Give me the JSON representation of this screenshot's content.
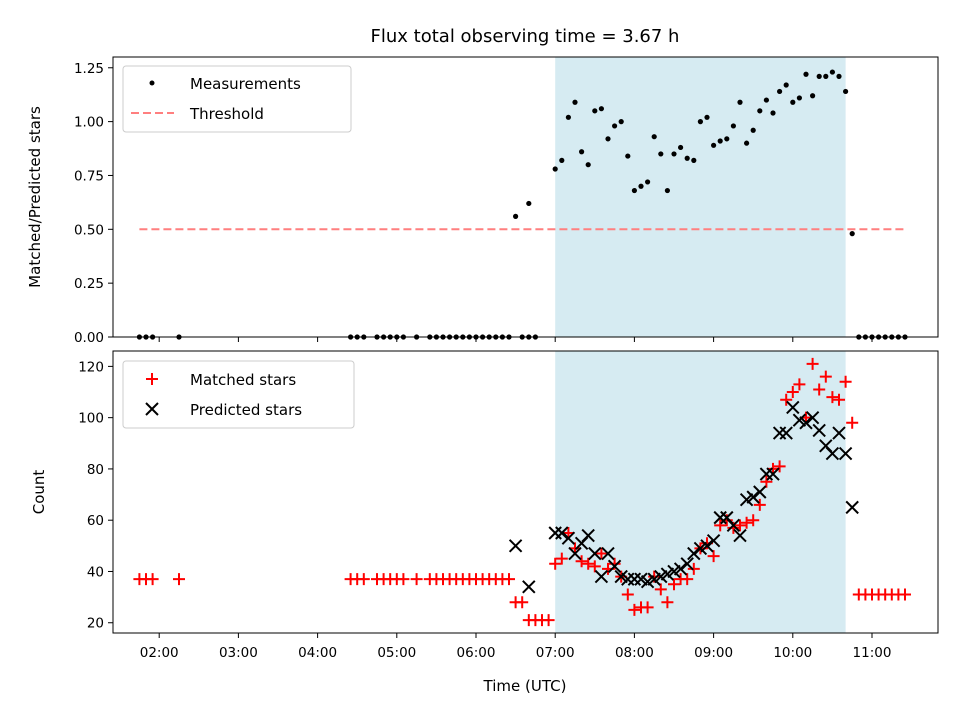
{
  "chart_data": {
    "title": "Flux total observing time = 3.67 h",
    "xlabel": "Time (UTC)",
    "x_ticks": [
      "02:00",
      "03:00",
      "04:00",
      "05:00",
      "06:00",
      "07:00",
      "08:00",
      "09:00",
      "10:00",
      "11:00"
    ],
    "xlim": [
      "01:25",
      "11:50"
    ],
    "highlight_span": [
      "07:00",
      "10:40"
    ],
    "highlight_color": "#add8e6",
    "panels": [
      {
        "type": "scatter",
        "ylabel": "Matched/Predicted stars",
        "ylim": [
          0,
          1.3
        ],
        "y_ticks": [
          "0.00",
          "0.25",
          "0.50",
          "0.75",
          "1.00",
          "1.25"
        ],
        "legend": {
          "position": "top-left",
          "entries": [
            "Measurements",
            "Threshold"
          ]
        },
        "threshold": {
          "label": "Threshold",
          "value": 0.5,
          "x_range": [
            "01:45",
            "11:25"
          ],
          "color": "#ff7f7f"
        },
        "series": [
          {
            "name": "Measurements",
            "marker": "dot",
            "color": "#000000",
            "points": [
              [
                "01:45",
                0
              ],
              [
                "01:50",
                0
              ],
              [
                "01:55",
                0
              ],
              [
                "02:15",
                0
              ],
              [
                "04:25",
                0
              ],
              [
                "04:30",
                0
              ],
              [
                "04:35",
                0
              ],
              [
                "04:45",
                0
              ],
              [
                "04:50",
                0
              ],
              [
                "04:55",
                0
              ],
              [
                "05:00",
                0
              ],
              [
                "05:05",
                0
              ],
              [
                "05:15",
                0
              ],
              [
                "05:25",
                0
              ],
              [
                "05:30",
                0
              ],
              [
                "05:35",
                0
              ],
              [
                "05:40",
                0
              ],
              [
                "05:45",
                0
              ],
              [
                "05:50",
                0
              ],
              [
                "05:55",
                0
              ],
              [
                "06:00",
                0
              ],
              [
                "06:05",
                0
              ],
              [
                "06:10",
                0
              ],
              [
                "06:15",
                0
              ],
              [
                "06:20",
                0
              ],
              [
                "06:25",
                0
              ],
              [
                "06:35",
                0
              ],
              [
                "06:40",
                0
              ],
              [
                "06:45",
                0
              ],
              [
                "06:30",
                0.56
              ],
              [
                "06:40",
                0.62
              ],
              [
                "07:00",
                0.78
              ],
              [
                "07:05",
                0.82
              ],
              [
                "07:10",
                1.02
              ],
              [
                "07:15",
                1.09
              ],
              [
                "07:20",
                0.86
              ],
              [
                "07:25",
                0.8
              ],
              [
                "07:30",
                1.05
              ],
              [
                "07:35",
                1.06
              ],
              [
                "07:40",
                0.92
              ],
              [
                "07:45",
                0.98
              ],
              [
                "07:50",
                1.0
              ],
              [
                "07:55",
                0.84
              ],
              [
                "08:00",
                0.68
              ],
              [
                "08:05",
                0.7
              ],
              [
                "08:10",
                0.72
              ],
              [
                "08:15",
                0.93
              ],
              [
                "08:20",
                0.85
              ],
              [
                "08:25",
                0.68
              ],
              [
                "08:30",
                0.85
              ],
              [
                "08:35",
                0.88
              ],
              [
                "08:40",
                0.83
              ],
              [
                "08:45",
                0.82
              ],
              [
                "08:50",
                1.0
              ],
              [
                "08:55",
                1.02
              ],
              [
                "09:00",
                0.89
              ],
              [
                "09:05",
                0.91
              ],
              [
                "09:10",
                0.92
              ],
              [
                "09:15",
                0.98
              ],
              [
                "09:20",
                1.09
              ],
              [
                "09:25",
                0.9
              ],
              [
                "09:30",
                0.96
              ],
              [
                "09:35",
                1.05
              ],
              [
                "09:40",
                1.1
              ],
              [
                "09:45",
                1.04
              ],
              [
                "09:50",
                1.14
              ],
              [
                "09:55",
                1.17
              ],
              [
                "10:00",
                1.09
              ],
              [
                "10:05",
                1.11
              ],
              [
                "10:10",
                1.22
              ],
              [
                "10:15",
                1.12
              ],
              [
                "10:20",
                1.21
              ],
              [
                "10:25",
                1.21
              ],
              [
                "10:30",
                1.23
              ],
              [
                "10:35",
                1.21
              ],
              [
                "10:40",
                1.14
              ],
              [
                "10:45",
                0.48
              ],
              [
                "10:50",
                0
              ],
              [
                "10:55",
                0
              ],
              [
                "11:00",
                0
              ],
              [
                "11:05",
                0
              ],
              [
                "11:10",
                0
              ],
              [
                "11:15",
                0
              ],
              [
                "11:20",
                0
              ],
              [
                "11:25",
                0
              ]
            ]
          }
        ]
      },
      {
        "type": "scatter",
        "ylabel": "Count",
        "ylim": [
          16,
          126
        ],
        "y_ticks": [
          "20",
          "40",
          "60",
          "80",
          "100",
          "120"
        ],
        "legend": {
          "position": "top-left",
          "entries": [
            "Matched stars",
            "Predicted stars"
          ]
        },
        "series": [
          {
            "name": "Matched stars",
            "marker": "plus",
            "color": "#ff0000",
            "points": [
              [
                "01:45",
                37
              ],
              [
                "01:50",
                37
              ],
              [
                "01:55",
                37
              ],
              [
                "02:15",
                37
              ],
              [
                "04:25",
                37
              ],
              [
                "04:30",
                37
              ],
              [
                "04:35",
                37
              ],
              [
                "04:45",
                37
              ],
              [
                "04:50",
                37
              ],
              [
                "04:55",
                37
              ],
              [
                "05:00",
                37
              ],
              [
                "05:05",
                37
              ],
              [
                "05:15",
                37
              ],
              [
                "05:25",
                37
              ],
              [
                "05:30",
                37
              ],
              [
                "05:35",
                37
              ],
              [
                "05:40",
                37
              ],
              [
                "05:45",
                37
              ],
              [
                "05:50",
                37
              ],
              [
                "05:55",
                37
              ],
              [
                "06:00",
                37
              ],
              [
                "06:05",
                37
              ],
              [
                "06:10",
                37
              ],
              [
                "06:15",
                37
              ],
              [
                "06:20",
                37
              ],
              [
                "06:25",
                37
              ],
              [
                "06:30",
                28
              ],
              [
                "06:35",
                28
              ],
              [
                "06:40",
                21
              ],
              [
                "06:45",
                21
              ],
              [
                "06:50",
                21
              ],
              [
                "06:55",
                21
              ],
              [
                "07:00",
                43
              ],
              [
                "07:05",
                45
              ],
              [
                "07:10",
                55
              ],
              [
                "07:15",
                49
              ],
              [
                "07:20",
                44
              ],
              [
                "07:25",
                43
              ],
              [
                "07:30",
                42
              ],
              [
                "07:35",
                47
              ],
              [
                "07:40",
                41
              ],
              [
                "07:45",
                43
              ],
              [
                "07:50",
                38
              ],
              [
                "07:55",
                31
              ],
              [
                "08:00",
                25
              ],
              [
                "08:05",
                26
              ],
              [
                "08:10",
                26
              ],
              [
                "08:15",
                38
              ],
              [
                "08:20",
                33
              ],
              [
                "08:25",
                28
              ],
              [
                "08:30",
                35
              ],
              [
                "08:35",
                37
              ],
              [
                "08:40",
                37
              ],
              [
                "08:45",
                41
              ],
              [
                "08:50",
                49
              ],
              [
                "08:55",
                51
              ],
              [
                "09:00",
                46
              ],
              [
                "09:05",
                58
              ],
              [
                "09:10",
                60
              ],
              [
                "09:15",
                57
              ],
              [
                "09:20",
                58
              ],
              [
                "09:25",
                59
              ],
              [
                "09:30",
                60
              ],
              [
                "09:35",
                66
              ],
              [
                "09:40",
                75
              ],
              [
                "09:45",
                80
              ],
              [
                "09:50",
                81
              ],
              [
                "09:55",
                107
              ],
              [
                "10:00",
                110
              ],
              [
                "10:05",
                113
              ],
              [
                "10:10",
                100
              ],
              [
                "10:15",
                121
              ],
              [
                "10:20",
                111
              ],
              [
                "10:25",
                116
              ],
              [
                "10:30",
                108
              ],
              [
                "10:35",
                107
              ],
              [
                "10:40",
                114
              ],
              [
                "10:45",
                98
              ],
              [
                "10:50",
                31
              ],
              [
                "10:55",
                31
              ],
              [
                "11:00",
                31
              ],
              [
                "11:05",
                31
              ],
              [
                "11:10",
                31
              ],
              [
                "11:15",
                31
              ],
              [
                "11:20",
                31
              ],
              [
                "11:25",
                31
              ]
            ]
          },
          {
            "name": "Predicted stars",
            "marker": "x",
            "color": "#000000",
            "points": [
              [
                "06:30",
                50
              ],
              [
                "06:40",
                34
              ],
              [
                "07:00",
                55
              ],
              [
                "07:05",
                55
              ],
              [
                "07:10",
                53
              ],
              [
                "07:15",
                47
              ],
              [
                "07:20",
                51
              ],
              [
                "07:25",
                54
              ],
              [
                "07:30",
                47
              ],
              [
                "07:35",
                38
              ],
              [
                "07:40",
                47
              ],
              [
                "07:45",
                42
              ],
              [
                "07:50",
                38
              ],
              [
                "07:55",
                37
              ],
              [
                "08:00",
                37
              ],
              [
                "08:05",
                37
              ],
              [
                "08:10",
                36
              ],
              [
                "08:15",
                37
              ],
              [
                "08:20",
                38
              ],
              [
                "08:25",
                39
              ],
              [
                "08:30",
                40
              ],
              [
                "08:35",
                41
              ],
              [
                "08:40",
                43
              ],
              [
                "08:45",
                47
              ],
              [
                "08:50",
                49
              ],
              [
                "08:55",
                50
              ],
              [
                "09:00",
                52
              ],
              [
                "09:05",
                61
              ],
              [
                "09:10",
                61
              ],
              [
                "09:15",
                58
              ],
              [
                "09:20",
                54
              ],
              [
                "09:25",
                68
              ],
              [
                "09:30",
                69
              ],
              [
                "09:35",
                71
              ],
              [
                "09:40",
                78
              ],
              [
                "09:45",
                78
              ],
              [
                "09:50",
                94
              ],
              [
                "09:55",
                94
              ],
              [
                "10:00",
                104
              ],
              [
                "10:05",
                99
              ],
              [
                "10:10",
                98
              ],
              [
                "10:15",
                100
              ],
              [
                "10:20",
                95
              ],
              [
                "10:25",
                89
              ],
              [
                "10:30",
                86
              ],
              [
                "10:35",
                94
              ],
              [
                "10:40",
                86
              ],
              [
                "10:45",
                65
              ]
            ]
          }
        ]
      }
    ]
  }
}
